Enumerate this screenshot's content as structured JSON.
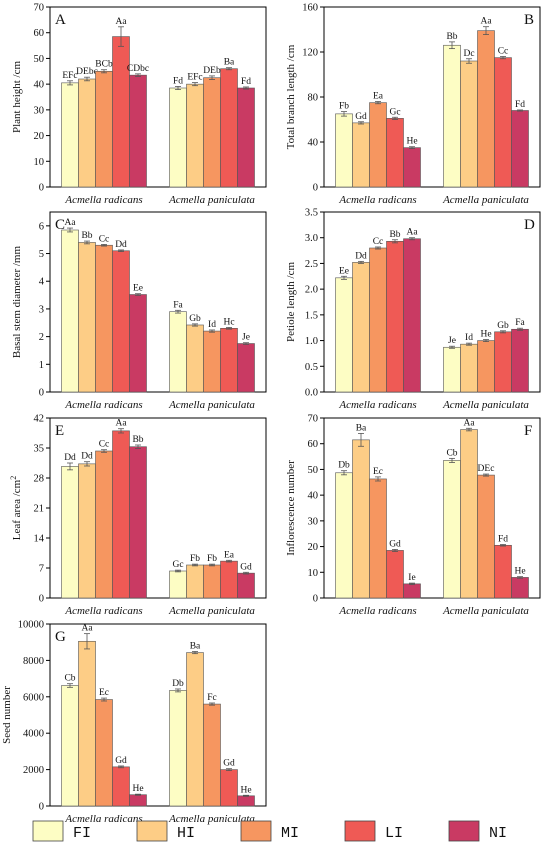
{
  "colors": {
    "FI": "#fdfdc4",
    "HI": "#fdcd86",
    "MI": "#f69660",
    "LI": "#ef5a55",
    "NI": "#c93a63",
    "axis": "#000000",
    "error_bar": "#555555"
  },
  "legend": {
    "entries": [
      {
        "key": "FI",
        "label": "FI"
      },
      {
        "key": "HI",
        "label": "HI"
      },
      {
        "key": "MI",
        "label": "MI"
      },
      {
        "key": "LI",
        "label": "LI"
      },
      {
        "key": "NI",
        "label": "NI"
      }
    ]
  },
  "chart_data": [
    {
      "id": "A",
      "type": "bar",
      "panel_letter": "A",
      "ylabel": "Plant height /cm",
      "ylim": [
        0,
        70
      ],
      "yticks": [
        "0",
        "10",
        "20",
        "30",
        "40",
        "50",
        "60",
        "70"
      ],
      "categories": [
        "Acmella radicans",
        "Acmella paniculata"
      ],
      "series": [
        {
          "name": "FI",
          "values": [
            40.5,
            38.5
          ],
          "errors": [
            0.8,
            0.6
          ],
          "labels": [
            "EFc",
            "Fd"
          ]
        },
        {
          "name": "HI",
          "values": [
            42.0,
            40.0
          ],
          "errors": [
            0.7,
            0.6
          ],
          "labels": [
            "DEbc",
            "EFc"
          ]
        },
        {
          "name": "MI",
          "values": [
            45.0,
            42.5
          ],
          "errors": [
            0.6,
            0.7
          ],
          "labels": [
            "BCb",
            "DEb"
          ]
        },
        {
          "name": "LI",
          "values": [
            58.5,
            46.0
          ],
          "errors": [
            3.8,
            0.4
          ],
          "labels": [
            "Aa",
            "Ba"
          ]
        },
        {
          "name": "NI",
          "values": [
            43.5,
            38.5
          ],
          "errors": [
            0.5,
            0.4
          ],
          "labels": [
            "CDbc",
            "Fd"
          ]
        }
      ]
    },
    {
      "id": "B",
      "type": "bar",
      "panel_letter": "B",
      "ylabel": "Total branch length /cm",
      "ylim": [
        0,
        160
      ],
      "yticks": [
        "0",
        "40",
        "80",
        "120",
        "160"
      ],
      "categories": [
        "Acmella radicans",
        "Acmella paniculata"
      ],
      "series": [
        {
          "name": "FI",
          "values": [
            65,
            126
          ],
          "errors": [
            2.0,
            3.0
          ],
          "labels": [
            "Fb",
            "Bb"
          ]
        },
        {
          "name": "HI",
          "values": [
            57,
            112
          ],
          "errors": [
            1.0,
            2.0
          ],
          "labels": [
            "Gd",
            "Dc"
          ]
        },
        {
          "name": "MI",
          "values": [
            75,
            139
          ],
          "errors": [
            1.0,
            3.5
          ],
          "labels": [
            "Ea",
            "Aa"
          ]
        },
        {
          "name": "LI",
          "values": [
            61,
            115
          ],
          "errors": [
            1.0,
            1.0
          ],
          "labels": [
            "Gc",
            "Cc"
          ]
        },
        {
          "name": "NI",
          "values": [
            35,
            68
          ],
          "errors": [
            0.8,
            0.5
          ],
          "labels": [
            "He",
            "Fd"
          ]
        }
      ]
    },
    {
      "id": "C",
      "type": "bar",
      "panel_letter": "C",
      "ylabel": "Basal stem diameter /mm",
      "ylim": [
        0,
        6.5
      ],
      "yticks": [
        "0",
        "1",
        "2",
        "3",
        "4",
        "5",
        "6"
      ],
      "ytick_values": [
        0,
        1,
        2,
        3,
        4,
        5,
        6
      ],
      "categories": [
        "Acmella radicans",
        "Acmella paniculata"
      ],
      "series": [
        {
          "name": "FI",
          "values": [
            5.85,
            2.9
          ],
          "errors": [
            0.07,
            0.05
          ],
          "labels": [
            "Aa",
            "Fa"
          ]
        },
        {
          "name": "HI",
          "values": [
            5.4,
            2.42
          ],
          "errors": [
            0.05,
            0.04
          ],
          "labels": [
            "Bb",
            "Gb"
          ]
        },
        {
          "name": "MI",
          "values": [
            5.3,
            2.2
          ],
          "errors": [
            0.03,
            0.04
          ],
          "labels": [
            "Cc",
            "Id"
          ]
        },
        {
          "name": "LI",
          "values": [
            5.1,
            2.3
          ],
          "errors": [
            0.03,
            0.03
          ],
          "labels": [
            "Dd",
            "Hc"
          ]
        },
        {
          "name": "NI",
          "values": [
            3.52,
            1.75
          ],
          "errors": [
            0.03,
            0.03
          ],
          "labels": [
            "Ee",
            "Je"
          ]
        }
      ]
    },
    {
      "id": "D",
      "type": "bar",
      "panel_letter": "D",
      "ylabel": "Petiole length /cm",
      "ylim": [
        0,
        3.5
      ],
      "yticks": [
        "0.0",
        "0.5",
        "1.0",
        "1.5",
        "2.0",
        "2.5",
        "3.0",
        "3.5"
      ],
      "categories": [
        "Acmella radicans",
        "Acmella paniculata"
      ],
      "series": [
        {
          "name": "FI",
          "values": [
            2.22,
            0.87
          ],
          "errors": [
            0.03,
            0.02
          ],
          "labels": [
            "Ee",
            "Je"
          ]
        },
        {
          "name": "HI",
          "values": [
            2.52,
            0.93
          ],
          "errors": [
            0.02,
            0.02
          ],
          "labels": [
            "Dd",
            "Id"
          ]
        },
        {
          "name": "MI",
          "values": [
            2.8,
            1.0
          ],
          "errors": [
            0.02,
            0.02
          ],
          "labels": [
            "Cc",
            "He"
          ]
        },
        {
          "name": "LI",
          "values": [
            2.93,
            1.17
          ],
          "errors": [
            0.03,
            0.02
          ],
          "labels": [
            "Bb",
            "Gb"
          ]
        },
        {
          "name": "NI",
          "values": [
            2.98,
            1.22
          ],
          "errors": [
            0.02,
            0.02
          ],
          "labels": [
            "Aa",
            "Fa"
          ]
        }
      ]
    },
    {
      "id": "E",
      "type": "bar",
      "panel_letter": "E",
      "ylabel": "Leaf area /cm",
      "ylabel_sup": "2",
      "ylim": [
        0,
        42
      ],
      "yticks": [
        "0",
        "7",
        "14",
        "21",
        "28",
        "35",
        "42"
      ],
      "categories": [
        "Acmella radicans",
        "Acmella paniculata"
      ],
      "series": [
        {
          "name": "FI",
          "values": [
            30.7,
            6.3
          ],
          "errors": [
            0.8,
            0.2
          ],
          "labels": [
            "Dd",
            "Gc"
          ]
        },
        {
          "name": "HI",
          "values": [
            31.3,
            7.7
          ],
          "errors": [
            0.5,
            0.2
          ],
          "labels": [
            "Dd",
            "Fb"
          ]
        },
        {
          "name": "MI",
          "values": [
            34.3,
            7.7
          ],
          "errors": [
            0.3,
            0.2
          ],
          "labels": [
            "Cc",
            "Fb"
          ]
        },
        {
          "name": "LI",
          "values": [
            39.0,
            8.6
          ],
          "errors": [
            0.5,
            0.2
          ],
          "labels": [
            "Aa",
            "Ea"
          ]
        },
        {
          "name": "NI",
          "values": [
            35.3,
            5.8
          ],
          "errors": [
            0.4,
            0.2
          ],
          "labels": [
            "Bb",
            "Gd"
          ]
        }
      ]
    },
    {
      "id": "F",
      "type": "bar",
      "panel_letter": "F",
      "ylabel": "Inflorescence number",
      "ylim": [
        0,
        70
      ],
      "yticks": [
        "0",
        "10",
        "20",
        "30",
        "40",
        "50",
        "60",
        "70"
      ],
      "categories": [
        "Acmella radicans",
        "Acmella paniculata"
      ],
      "series": [
        {
          "name": "FI",
          "values": [
            48.7,
            53.5
          ],
          "errors": [
            0.8,
            0.8
          ],
          "labels": [
            "Db",
            "Cb"
          ]
        },
        {
          "name": "HI",
          "values": [
            61.5,
            65.5
          ],
          "errors": [
            2.5,
            0.5
          ],
          "labels": [
            "Ba",
            "Aa"
          ]
        },
        {
          "name": "MI",
          "values": [
            46.3,
            47.8
          ],
          "errors": [
            0.8,
            0.4
          ],
          "labels": [
            "Ec",
            "DEc"
          ]
        },
        {
          "name": "LI",
          "values": [
            18.5,
            20.5
          ],
          "errors": [
            0.4,
            0.3
          ],
          "labels": [
            "Gd",
            "Fd"
          ]
        },
        {
          "name": "NI",
          "values": [
            5.5,
            8.0
          ],
          "errors": [
            0.3,
            0.3
          ],
          "labels": [
            "Ie",
            "He"
          ]
        }
      ]
    },
    {
      "id": "G",
      "type": "bar",
      "panel_letter": "G",
      "ylabel": "Seed number",
      "ylim": [
        0,
        10000
      ],
      "yticks": [
        "0",
        "2000",
        "4000",
        "6000",
        "8000",
        "10000"
      ],
      "categories": [
        "Acmella radicans",
        "Acmella paniculata"
      ],
      "series": [
        {
          "name": "FI",
          "values": [
            6620,
            6350
          ],
          "errors": [
            100,
            80
          ],
          "labels": [
            "Cb",
            "Db"
          ]
        },
        {
          "name": "HI",
          "values": [
            9050,
            8430
          ],
          "errors": [
            420,
            60
          ],
          "labels": [
            "Aa",
            "Ba"
          ]
        },
        {
          "name": "MI",
          "values": [
            5850,
            5600
          ],
          "errors": [
            80,
            60
          ],
          "labels": [
            "Ec",
            "Fc"
          ]
        },
        {
          "name": "LI",
          "values": [
            2150,
            2000
          ],
          "errors": [
            50,
            50
          ],
          "labels": [
            "Gd",
            "Gd"
          ]
        },
        {
          "name": "NI",
          "values": [
            620,
            560
          ],
          "errors": [
            30,
            30
          ],
          "labels": [
            "He",
            "He"
          ]
        }
      ]
    }
  ]
}
